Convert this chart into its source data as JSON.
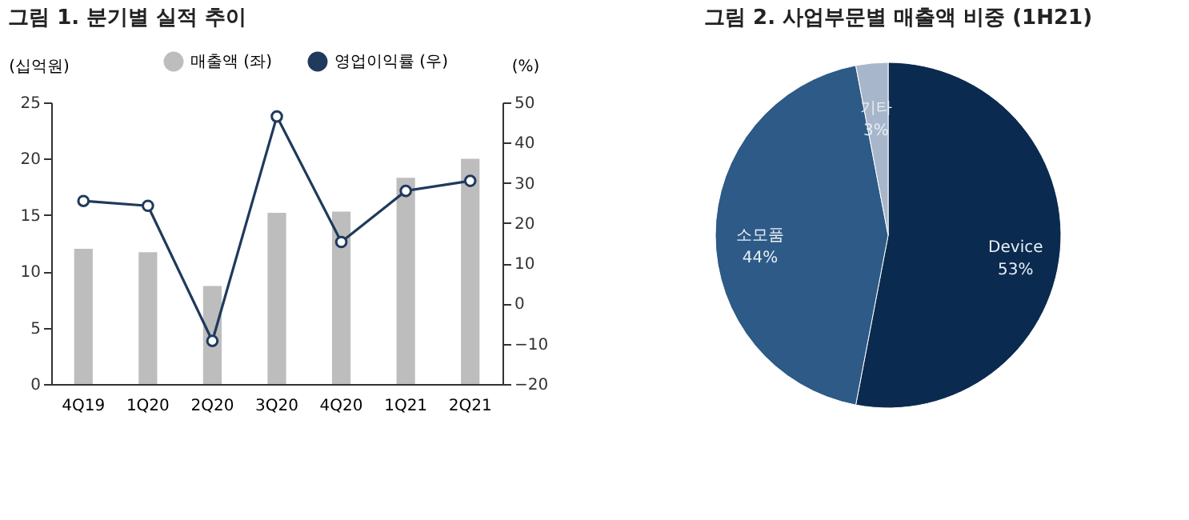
{
  "chart_data": [
    {
      "type": "bar",
      "title": "그림 1. 분기별 실적 추이",
      "ylabel": "(십억원)",
      "y2label": "(%)",
      "categories": [
        "4Q19",
        "1Q20",
        "2Q20",
        "3Q20",
        "4Q20",
        "1Q21",
        "2Q21"
      ],
      "series": [
        {
          "name": "매출액 (좌)",
          "type": "bar",
          "color": "#bdbdbd",
          "values": [
            12.0,
            11.7,
            8.7,
            15.2,
            15.3,
            18.3,
            20.0
          ]
        },
        {
          "name": "영업이익률 (우)",
          "type": "line",
          "axis": "y2",
          "color": "#1f3a5c",
          "values": [
            25.5,
            24.3,
            -9.3,
            46.5,
            15.3,
            28.0,
            30.5
          ]
        }
      ],
      "ylim": [
        0,
        25
      ],
      "yticks": [
        0,
        5,
        10,
        15,
        20,
        25
      ],
      "y2lim": [
        -20,
        50
      ],
      "y2ticks": [
        -20,
        -10,
        0,
        10,
        20,
        30,
        40,
        50
      ],
      "grid": false,
      "legend": "top",
      "marker": "circle"
    },
    {
      "type": "pie",
      "title": "그림 2. 사업부문별 매출액 비중 (1H21)",
      "categories": [
        "Device",
        "소모품",
        "기타"
      ],
      "values": [
        53,
        44,
        3
      ],
      "colors": [
        "#0b2a4f",
        "#2d5a86",
        "#a8b6cb"
      ],
      "value_labels": [
        "53%",
        "44%",
        "3%"
      ],
      "legend": false
    }
  ]
}
